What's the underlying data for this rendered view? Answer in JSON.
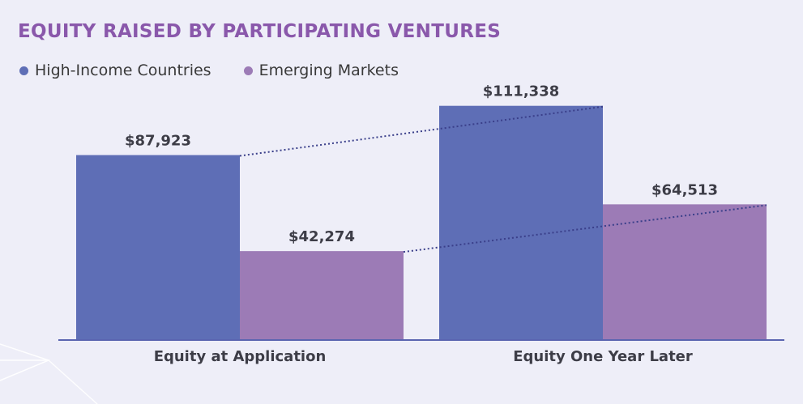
{
  "chart_data": {
    "type": "bar",
    "title": "EQUITY RAISED BY PARTICIPATING VENTURES",
    "categories": [
      "Equity at Application",
      "Equity One Year Later"
    ],
    "series": [
      {
        "name": "High-Income Countries",
        "values": [
          87923,
          111338
        ],
        "labels": [
          "$87,923",
          "$111,338"
        ],
        "color": "#5e6eb6"
      },
      {
        "name": "Emerging Markets",
        "values": [
          42274,
          64513
        ],
        "labels": [
          "$42,274",
          "$64,513"
        ],
        "color": "#9c7bb6"
      }
    ],
    "ylim": [
      0,
      127000
    ],
    "grid": false,
    "legend": "top-left",
    "connector_lines": "dotted"
  }
}
